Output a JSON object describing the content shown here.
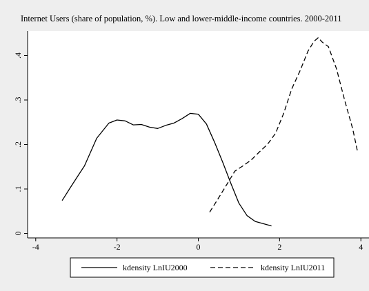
{
  "colors": {
    "background": "#eeeeee",
    "plot_area": "#ffffff",
    "line": "#000000"
  },
  "chart_data": {
    "type": "line",
    "title": "Internet Users (share of population, %). Low and lower-middle-income countries. 2000-2011",
    "xlabel": "",
    "ylabel": "",
    "xlim": [
      -4.2,
      4.2
    ],
    "ylim": [
      -0.01,
      0.455
    ],
    "x_ticks": [
      -4,
      -2,
      0,
      2,
      4
    ],
    "x_tick_labels": [
      "-4",
      "-2",
      "0",
      "2",
      "4"
    ],
    "y_ticks": [
      0,
      0.1,
      0.2,
      0.3,
      0.4
    ],
    "y_tick_labels": [
      "0",
      ".1",
      ".2",
      ".3",
      ".4"
    ],
    "grid": false,
    "legend_position": "bottom",
    "series": [
      {
        "name": "kdensity LnIU2000",
        "style": "solid",
        "x": [
          -3.35,
          -3.1,
          -2.8,
          -2.5,
          -2.2,
          -2.0,
          -1.8,
          -1.6,
          -1.4,
          -1.2,
          -1.0,
          -0.8,
          -0.6,
          -0.4,
          -0.2,
          0.0,
          0.2,
          0.4,
          0.6,
          0.8,
          1.0,
          1.2,
          1.4,
          1.6,
          1.8
        ],
        "y": [
          0.074,
          0.11,
          0.152,
          0.214,
          0.248,
          0.255,
          0.253,
          0.244,
          0.245,
          0.239,
          0.236,
          0.243,
          0.248,
          0.258,
          0.27,
          0.268,
          0.246,
          0.205,
          0.16,
          0.113,
          0.068,
          0.04,
          0.027,
          0.022,
          0.017
        ]
      },
      {
        "name": "kdensity LnIU2011",
        "style": "dashed",
        "x": [
          0.28,
          0.5,
          0.7,
          0.9,
          1.1,
          1.3,
          1.5,
          1.7,
          1.9,
          2.1,
          2.3,
          2.5,
          2.7,
          2.85,
          2.95,
          3.05,
          3.2,
          3.4,
          3.6,
          3.8,
          3.92
        ],
        "y": [
          0.048,
          0.08,
          0.11,
          0.14,
          0.152,
          0.165,
          0.183,
          0.2,
          0.225,
          0.27,
          0.325,
          0.365,
          0.41,
          0.432,
          0.44,
          0.43,
          0.42,
          0.37,
          0.3,
          0.235,
          0.183
        ]
      }
    ]
  }
}
